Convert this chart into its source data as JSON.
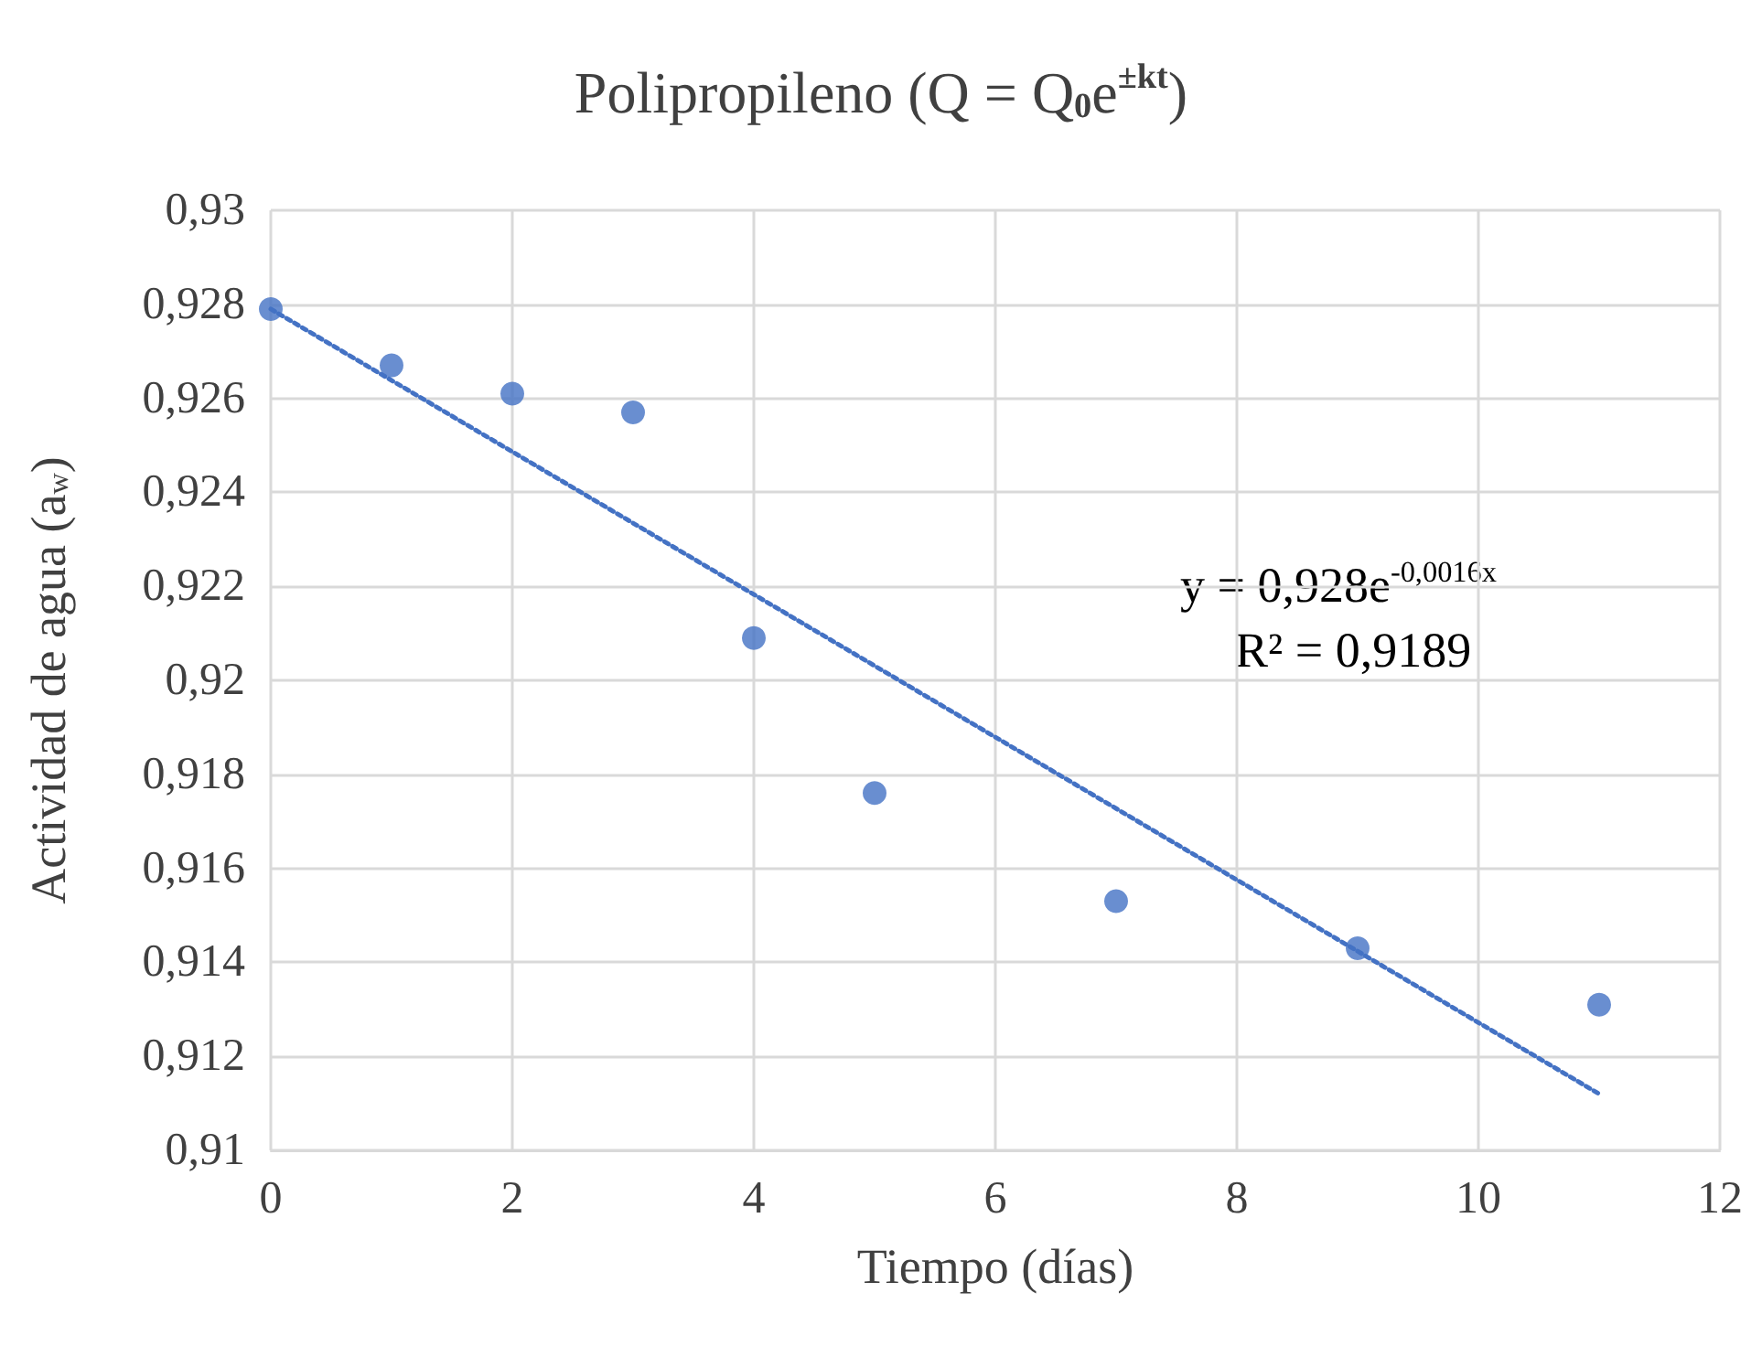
{
  "chart_data": {
    "type": "scatter",
    "title": "Polipropileno (Q = Q$_{0}$e$^{±kt}$)",
    "xlabel": "Tiempo (días)",
    "ylabel": "Actividad de agua (a$_{w}$)",
    "x": [
      0,
      1,
      2,
      3,
      4,
      5,
      7,
      9,
      11
    ],
    "series": [
      {
        "color": "#4472c4",
        "marker": "circle",
        "values": [
          0.9279,
          0.9267,
          0.9261,
          0.9257,
          0.9209,
          0.9176,
          0.9153,
          0.9143,
          0.9131
        ]
      },
      {
        "type": "line",
        "color": "#4472c4",
        "line_style": "dotted",
        "marker": "none",
        "x": [
          0,
          11
        ],
        "values": [
          0.9279,
          0.9112
        ]
      }
    ],
    "xlim": [
      0,
      12
    ],
    "xticks": [
      0,
      2,
      4,
      6,
      8,
      10,
      12
    ],
    "ylim": [
      0.91,
      0.93
    ],
    "yticks": [
      {
        "value": 0.91,
        "label": "0,91"
      },
      {
        "value": 0.912,
        "label": "0,912"
      },
      {
        "value": 0.914,
        "label": "0,914"
      },
      {
        "value": 0.916,
        "label": "0,916"
      },
      {
        "value": 0.918,
        "label": "0,918"
      },
      {
        "value": 0.92,
        "label": "0,92"
      },
      {
        "value": 0.922,
        "label": "0,922"
      },
      {
        "value": 0.924,
        "label": "0,924"
      },
      {
        "value": 0.926,
        "label": "0,926"
      },
      {
        "value": 0.928,
        "label": "0,928"
      },
      {
        "value": 0.93,
        "label": "0,93"
      }
    ],
    "grid": true,
    "annotations": [
      "y = 0,928e$^{-0,0016x}$",
      "R² = 0,9189"
    ]
  }
}
